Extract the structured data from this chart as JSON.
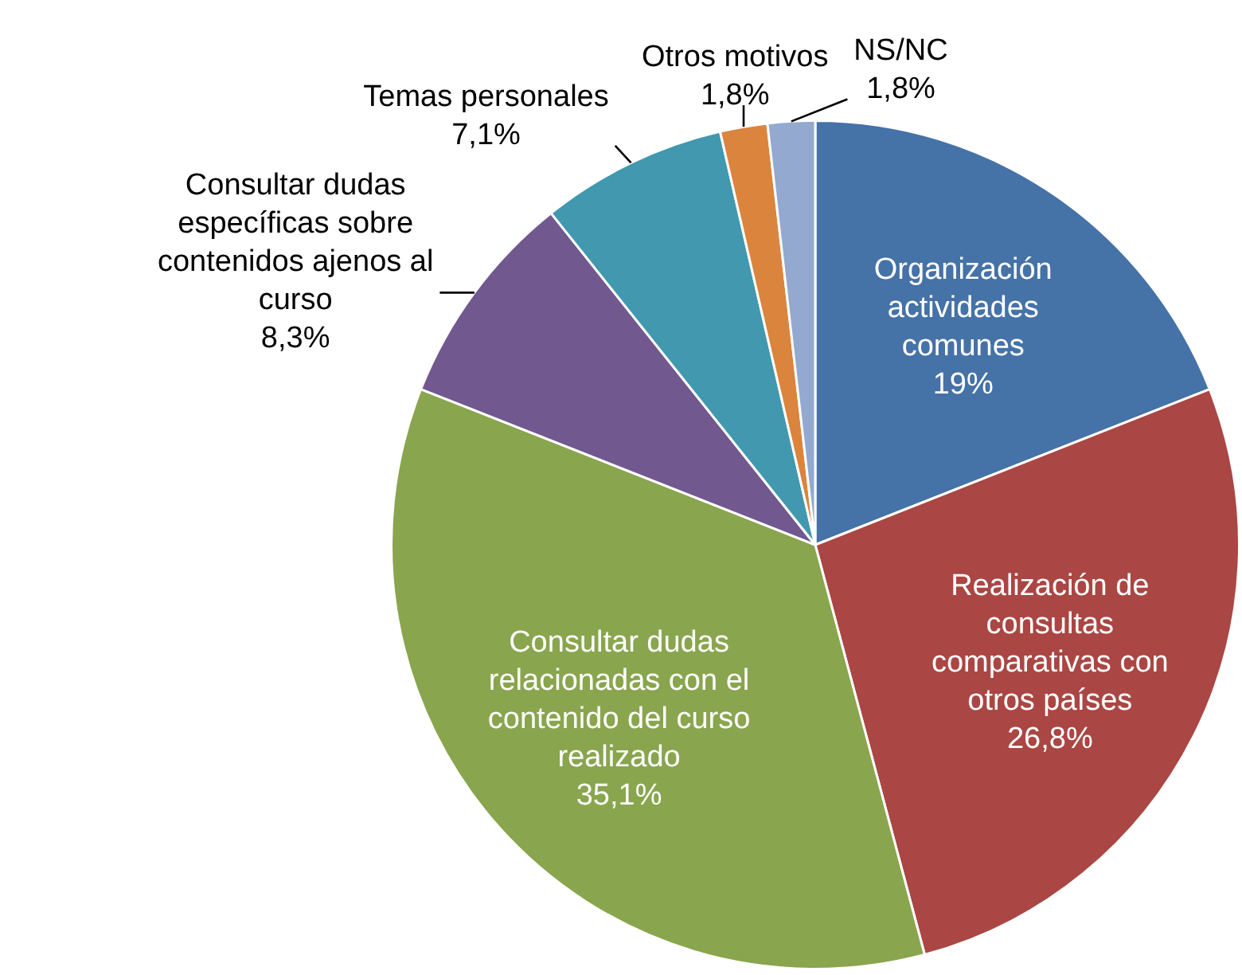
{
  "chart_data": {
    "type": "pie",
    "categories": [
      "Organización actividades comunes",
      "Realización de consultas comparativas con otros países",
      "Consultar dudas relacionadas con el contenido del curso realizado",
      "Consultar dudas específicas sobre contenidos ajenos al curso",
      "Temas personales",
      "Otros motivos",
      "NS/NC"
    ],
    "values": [
      19,
      26.8,
      35.1,
      8.3,
      7.1,
      1.8,
      1.8
    ],
    "value_labels": [
      "19%",
      "26,8%",
      "35,1%",
      "8,3%",
      "7,1%",
      "1,8%",
      "1,8%"
    ],
    "colors": [
      "#4572a7",
      "#aa4643",
      "#89a54e",
      "#71588f",
      "#4198af",
      "#db843d",
      "#93a9cf"
    ],
    "legend": false
  }
}
